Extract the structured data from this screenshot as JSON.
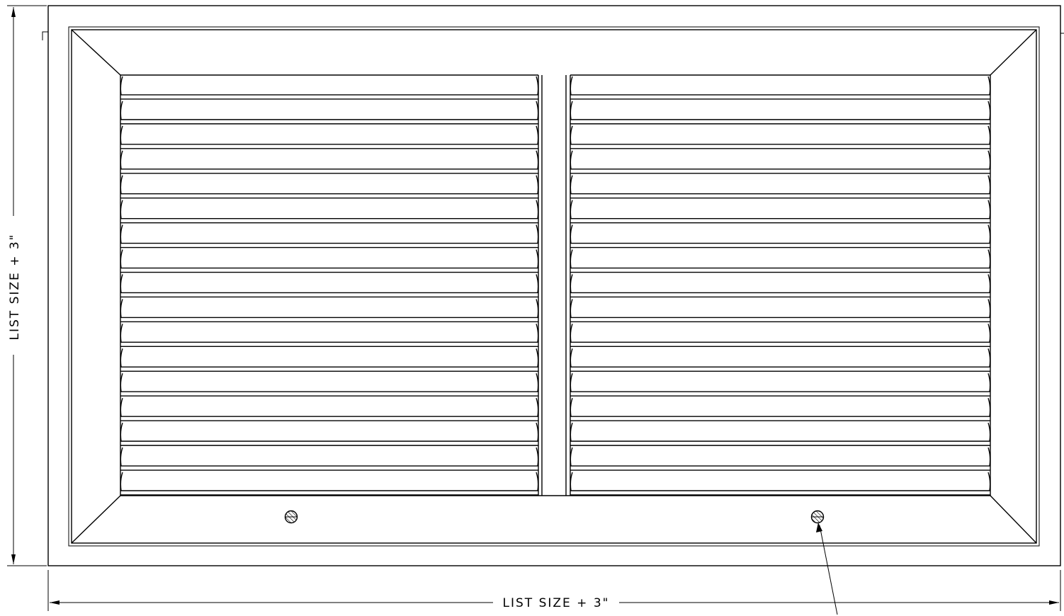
{
  "dimensions": {
    "width_label": "LIST SIZE + 3\"",
    "height_label": "LIST SIZE + 3\""
  },
  "grille": {
    "blade_rows": 17,
    "blade_columns": 2,
    "fastener_count": 2
  },
  "colors": {
    "line": "#000000",
    "background": "#ffffff"
  }
}
